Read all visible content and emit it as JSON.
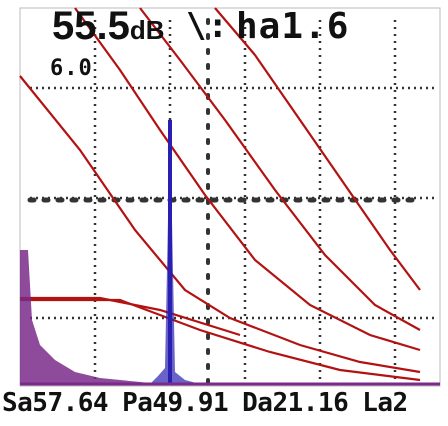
{
  "readouts": {
    "gain_value": "55.5",
    "gain_unit": "dB",
    "separator": "\\:",
    "ha": "ha1.6",
    "range": "6.0"
  },
  "bottom_bar": {
    "sa": "Sa57.64",
    "pa": "Pa49.91",
    "da": "Da21.16",
    "la": "La2"
  },
  "colors": {
    "background": "#ffffff",
    "grid": "#333333",
    "curve": "#b31212",
    "signal": "#2a1fb0",
    "echo": "#7a2a8a",
    "text": "#111111"
  }
}
